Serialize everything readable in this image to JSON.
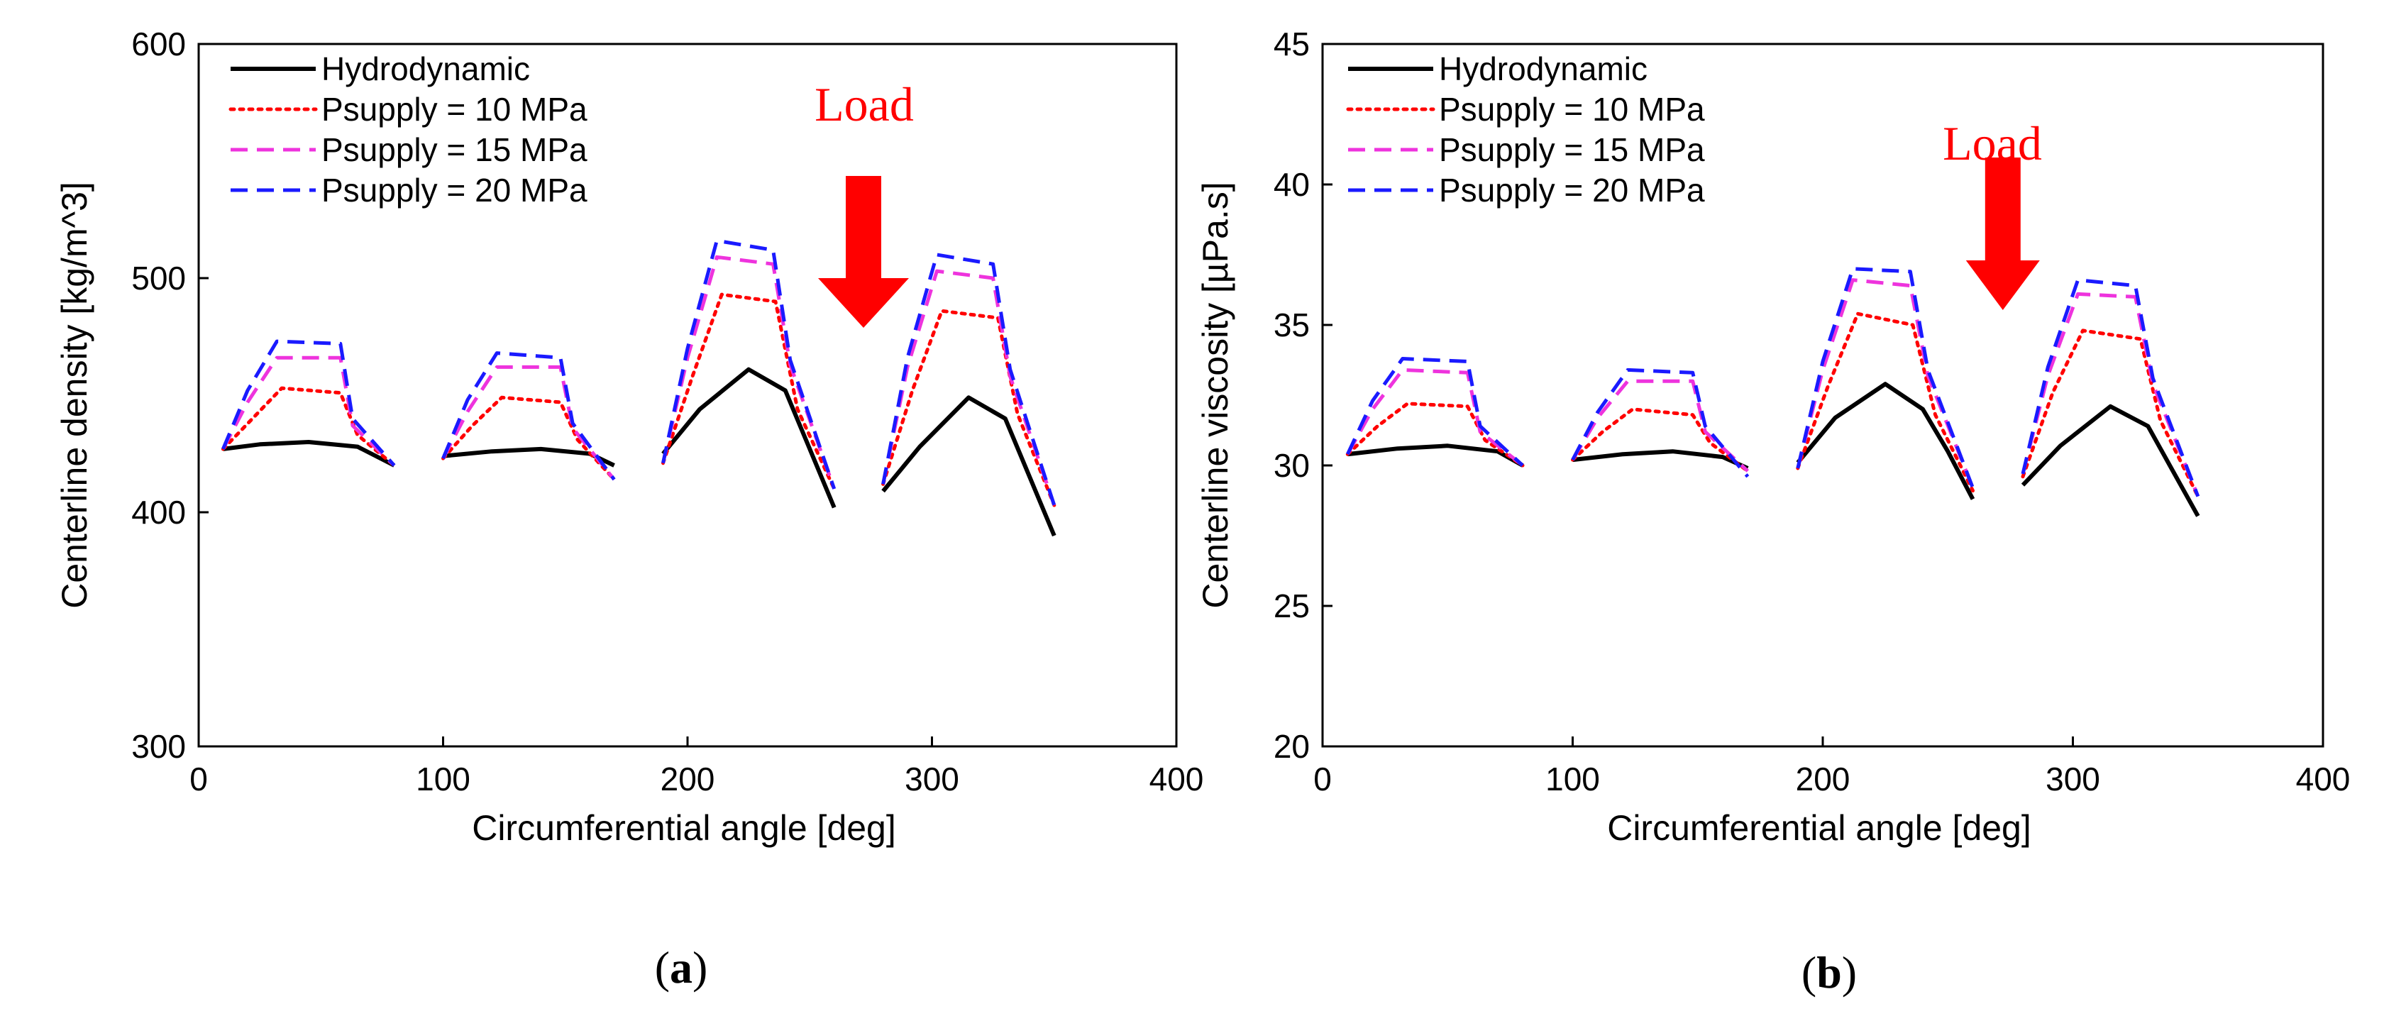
{
  "panels": [
    {
      "label": "a",
      "label_text": "(a)",
      "annotation": "Load"
    },
    {
      "label": "b",
      "label_text": "(b)",
      "annotation": "Load"
    }
  ],
  "colors": {
    "Hydrodynamic": "#000000",
    "Psupply = 10 MPa": "#ff0000",
    "Psupply = 15 MPa": "#ee33dd",
    "Psupply = 20 MPa": "#1a1aff",
    "load_arrow": "#ff0000"
  },
  "chart_data": [
    {
      "type": "line",
      "xlabel": "Circumferential angle [deg]",
      "ylabel": "Centerline density [kg/m^3]",
      "xlim": [
        0,
        400
      ],
      "ylim": [
        300,
        600
      ],
      "xticks": [
        0,
        100,
        200,
        300,
        400
      ],
      "yticks": [
        300,
        400,
        500,
        600
      ],
      "xtick_labels": [
        "0",
        "100",
        "200",
        "300",
        "400"
      ],
      "ytick_labels": [
        "300",
        "400",
        "500",
        "600"
      ],
      "grid": false,
      "legend_position": "top-left",
      "annotation": {
        "text": "Load",
        "x": 272
      },
      "series": [
        {
          "name": "Hydrodynamic",
          "style": "solid",
          "segments": [
            [
              [
                10,
                427
              ],
              [
                25,
                429
              ],
              [
                45,
                430
              ],
              [
                65,
                428
              ],
              [
                80,
                420
              ]
            ],
            [
              [
                100,
                424
              ],
              [
                120,
                426
              ],
              [
                140,
                427
              ],
              [
                160,
                425
              ],
              [
                170,
                420
              ]
            ],
            [
              [
                190,
                425
              ],
              [
                205,
                444
              ],
              [
                225,
                461
              ],
              [
                240,
                452
              ],
              [
                250,
                427
              ],
              [
                260,
                402
              ]
            ],
            [
              [
                280,
                409
              ],
              [
                295,
                428
              ],
              [
                315,
                449
              ],
              [
                330,
                440
              ],
              [
                340,
                415
              ],
              [
                350,
                390
              ]
            ]
          ]
        },
        {
          "name": "Psupply = 10 MPa",
          "style": "dotted",
          "segments": [
            [
              [
                10,
                427
              ],
              [
                22,
                440
              ],
              [
                34,
                453
              ],
              [
                58,
                451
              ],
              [
                65,
                433
              ],
              [
                80,
                420
              ]
            ],
            [
              [
                100,
                423
              ],
              [
                112,
                437
              ],
              [
                124,
                449
              ],
              [
                148,
                447
              ],
              [
                155,
                431
              ],
              [
                170,
                414
              ]
            ],
            [
              [
                190,
                421
              ],
              [
                202,
                458
              ],
              [
                214,
                493
              ],
              [
                236,
                490
              ],
              [
                245,
                444
              ],
              [
                260,
                410
              ]
            ],
            [
              [
                280,
                412
              ],
              [
                292,
                452
              ],
              [
                304,
                486
              ],
              [
                327,
                483
              ],
              [
                335,
                442
              ],
              [
                350,
                403
              ]
            ]
          ]
        },
        {
          "name": "Psupply = 15 MPa",
          "style": "dashed",
          "segments": [
            [
              [
                10,
                427
              ],
              [
                20,
                447
              ],
              [
                32,
                466
              ],
              [
                58,
                466
              ],
              [
                63,
                437
              ],
              [
                80,
                420
              ]
            ],
            [
              [
                100,
                423
              ],
              [
                110,
                443
              ],
              [
                122,
                462
              ],
              [
                148,
                462
              ],
              [
                153,
                436
              ],
              [
                170,
                414
              ]
            ],
            [
              [
                190,
                421
              ],
              [
                200,
                466
              ],
              [
                212,
                509
              ],
              [
                235,
                506
              ],
              [
                242,
                463
              ],
              [
                260,
                410
              ]
            ],
            [
              [
                280,
                412
              ],
              [
                290,
                462
              ],
              [
                302,
                503
              ],
              [
                325,
                500
              ],
              [
                332,
                458
              ],
              [
                350,
                403
              ]
            ]
          ]
        },
        {
          "name": "Psupply = 20 MPa",
          "style": "dashed",
          "segments": [
            [
              [
                10,
                427
              ],
              [
                20,
                452
              ],
              [
                32,
                473
              ],
              [
                58,
                472
              ],
              [
                63,
                440
              ],
              [
                80,
                420
              ]
            ],
            [
              [
                100,
                423
              ],
              [
                110,
                448
              ],
              [
                122,
                468
              ],
              [
                148,
                466
              ],
              [
                153,
                438
              ],
              [
                170,
                414
              ]
            ],
            [
              [
                190,
                421
              ],
              [
                200,
                470
              ],
              [
                212,
                516
              ],
              [
                235,
                512
              ],
              [
                242,
                465
              ],
              [
                260,
                410
              ]
            ],
            [
              [
                280,
                412
              ],
              [
                290,
                466
              ],
              [
                302,
                510
              ],
              [
                325,
                506
              ],
              [
                332,
                461
              ],
              [
                350,
                403
              ]
            ]
          ]
        }
      ]
    },
    {
      "type": "line",
      "xlabel": "Circumferential angle [deg]",
      "ylabel": "Centerline viscosity [µPa.s]",
      "xlim": [
        0,
        400
      ],
      "ylim": [
        20,
        45
      ],
      "xticks": [
        0,
        100,
        200,
        300,
        400
      ],
      "yticks": [
        20,
        25,
        30,
        35,
        40,
        45
      ],
      "xtick_labels": [
        "0",
        "100",
        "200",
        "300",
        "400"
      ],
      "ytick_labels": [
        "20",
        "25",
        "30",
        "35",
        "40",
        "45"
      ],
      "grid": false,
      "legend_position": "top-left",
      "annotation": {
        "text": "Load",
        "x": 272
      },
      "series": [
        {
          "name": "Hydrodynamic",
          "style": "solid",
          "segments": [
            [
              [
                10,
                30.4
              ],
              [
                30,
                30.6
              ],
              [
                50,
                30.7
              ],
              [
                70,
                30.5
              ],
              [
                80,
                30.0
              ]
            ],
            [
              [
                100,
                30.2
              ],
              [
                120,
                30.4
              ],
              [
                140,
                30.5
              ],
              [
                160,
                30.3
              ],
              [
                170,
                29.9
              ]
            ],
            [
              [
                190,
                30.1
              ],
              [
                205,
                31.7
              ],
              [
                225,
                32.9
              ],
              [
                240,
                32.0
              ],
              [
                250,
                30.5
              ],
              [
                260,
                28.8
              ]
            ],
            [
              [
                280,
                29.3
              ],
              [
                295,
                30.7
              ],
              [
                315,
                32.1
              ],
              [
                330,
                31.4
              ],
              [
                340,
                29.8
              ],
              [
                350,
                28.2
              ]
            ]
          ]
        },
        {
          "name": "Psupply = 10 MPa",
          "style": "dotted",
          "segments": [
            [
              [
                10,
                30.4
              ],
              [
                22,
                31.4
              ],
              [
                34,
                32.2
              ],
              [
                58,
                32.1
              ],
              [
                65,
                30.9
              ],
              [
                80,
                30.0
              ]
            ],
            [
              [
                100,
                30.2
              ],
              [
                112,
                31.2
              ],
              [
                124,
                32.0
              ],
              [
                148,
                31.8
              ],
              [
                155,
                30.8
              ],
              [
                170,
                29.8
              ]
            ],
            [
              [
                190,
                29.9
              ],
              [
                202,
                32.8
              ],
              [
                214,
                35.4
              ],
              [
                236,
                35.0
              ],
              [
                245,
                31.8
              ],
              [
                260,
                29.1
              ]
            ],
            [
              [
                280,
                29.6
              ],
              [
                292,
                32.6
              ],
              [
                304,
                34.8
              ],
              [
                327,
                34.5
              ],
              [
                335,
                31.6
              ],
              [
                350,
                28.9
              ]
            ]
          ]
        },
        {
          "name": "Psupply = 15 MPa",
          "style": "dashed",
          "segments": [
            [
              [
                10,
                30.4
              ],
              [
                20,
                32.0
              ],
              [
                32,
                33.4
              ],
              [
                58,
                33.3
              ],
              [
                63,
                31.2
              ],
              [
                80,
                30.0
              ]
            ],
            [
              [
                100,
                30.2
              ],
              [
                110,
                31.7
              ],
              [
                122,
                33.0
              ],
              [
                148,
                33.0
              ],
              [
                153,
                31.2
              ],
              [
                170,
                29.8
              ]
            ],
            [
              [
                190,
                29.9
              ],
              [
                200,
                33.4
              ],
              [
                212,
                36.6
              ],
              [
                235,
                36.4
              ],
              [
                242,
                33.2
              ],
              [
                260,
                29.2
              ]
            ],
            [
              [
                280,
                29.7
              ],
              [
                290,
                33.2
              ],
              [
                302,
                36.1
              ],
              [
                325,
                36.0
              ],
              [
                332,
                32.9
              ],
              [
                350,
                28.9
              ]
            ]
          ]
        },
        {
          "name": "Psupply = 20 MPa",
          "style": "dashed",
          "segments": [
            [
              [
                10,
                30.4
              ],
              [
                20,
                32.3
              ],
              [
                32,
                33.8
              ],
              [
                58,
                33.7
              ],
              [
                63,
                31.4
              ],
              [
                80,
                30.0
              ]
            ],
            [
              [
                100,
                30.2
              ],
              [
                110,
                31.9
              ],
              [
                122,
                33.4
              ],
              [
                148,
                33.3
              ],
              [
                153,
                31.4
              ],
              [
                170,
                29.6
              ]
            ],
            [
              [
                190,
                29.9
              ],
              [
                200,
                33.7
              ],
              [
                212,
                37.0
              ],
              [
                235,
                36.9
              ],
              [
                242,
                33.4
              ],
              [
                260,
                29.2
              ]
            ],
            [
              [
                280,
                29.7
              ],
              [
                290,
                33.5
              ],
              [
                302,
                36.6
              ],
              [
                325,
                36.4
              ],
              [
                332,
                33.1
              ],
              [
                350,
                28.9
              ]
            ]
          ]
        }
      ]
    }
  ]
}
